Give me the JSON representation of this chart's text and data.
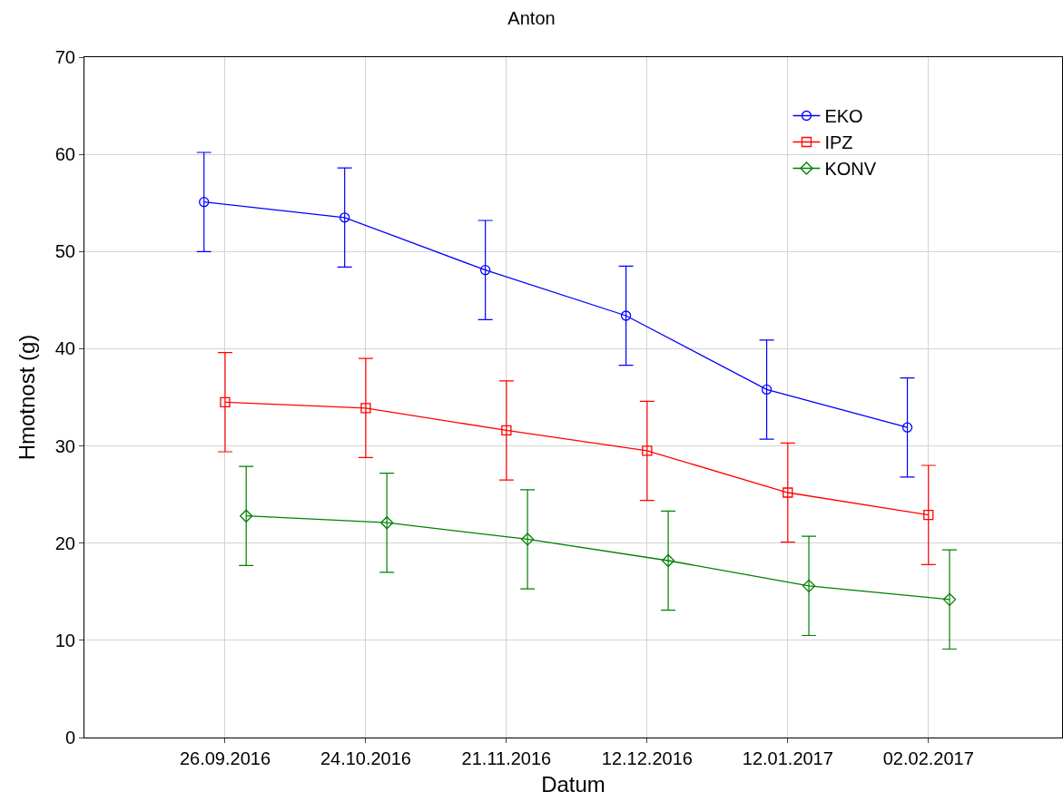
{
  "chart_data": {
    "type": "line",
    "title": "Anton",
    "xlabel": "Datum",
    "ylabel": "Hmotnost (g)",
    "categories": [
      "26.09.2016",
      "24.10.2016",
      "21.11.2016",
      "12.12.2016",
      "12.01.2017",
      "02.02.2017"
    ],
    "series": [
      {
        "name": "EKO",
        "color": "#0000ff",
        "marker": "circle",
        "values": [
          55.1,
          53.5,
          48.1,
          43.4,
          35.8,
          31.9
        ],
        "errors": [
          5.1,
          5.1,
          5.1,
          5.1,
          5.1,
          5.1
        ]
      },
      {
        "name": "IPZ",
        "color": "#ff0000",
        "marker": "square",
        "values": [
          34.5,
          33.9,
          31.6,
          29.5,
          25.2,
          22.9
        ],
        "errors": [
          5.1,
          5.1,
          5.1,
          5.1,
          5.1,
          5.1
        ]
      },
      {
        "name": "KONV",
        "color": "#008000",
        "marker": "diamond",
        "values": [
          22.8,
          22.1,
          20.4,
          18.2,
          15.6,
          14.2
        ],
        "errors": [
          5.1,
          5.1,
          5.1,
          5.1,
          5.1,
          5.1
        ]
      }
    ],
    "ylim": [
      0,
      70
    ],
    "yticks": [
      0,
      10,
      20,
      30,
      40,
      50,
      60,
      70
    ],
    "grid": true,
    "legend": "top right",
    "line_style": "solid"
  }
}
